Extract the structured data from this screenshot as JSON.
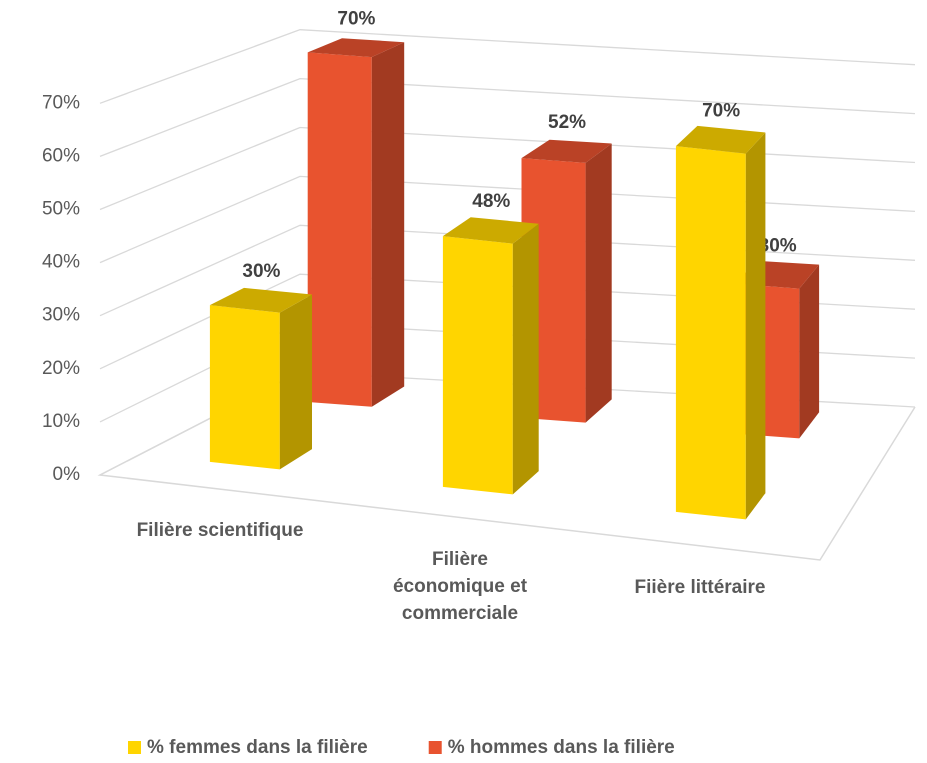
{
  "chart_data": {
    "type": "bar3d",
    "categories": [
      "Filière scientifique",
      "Filière économique et commerciale",
      "Fiière littéraire"
    ],
    "series": [
      {
        "name": "% femmes dans la filière",
        "color": "#ffd500",
        "values": [
          30,
          48,
          70
        ],
        "value_labels": [
          "30%",
          "48%",
          "70%"
        ]
      },
      {
        "name": "% hommes dans la filière",
        "color": "#e8532f",
        "values": [
          70,
          52,
          30
        ],
        "value_labels": [
          "70%",
          "52%",
          "30%"
        ]
      }
    ],
    "ylim": [
      0,
      70
    ],
    "yticks": [
      {
        "value": 0,
        "label": "0%"
      },
      {
        "value": 10,
        "label": "10%"
      },
      {
        "value": 20,
        "label": "20%"
      },
      {
        "value": 30,
        "label": "30%"
      },
      {
        "value": 40,
        "label": "40%"
      },
      {
        "value": 50,
        "label": "50%"
      },
      {
        "value": 60,
        "label": "60%"
      },
      {
        "value": 70,
        "label": "70%"
      }
    ],
    "grid": true,
    "legend": "bottom"
  }
}
